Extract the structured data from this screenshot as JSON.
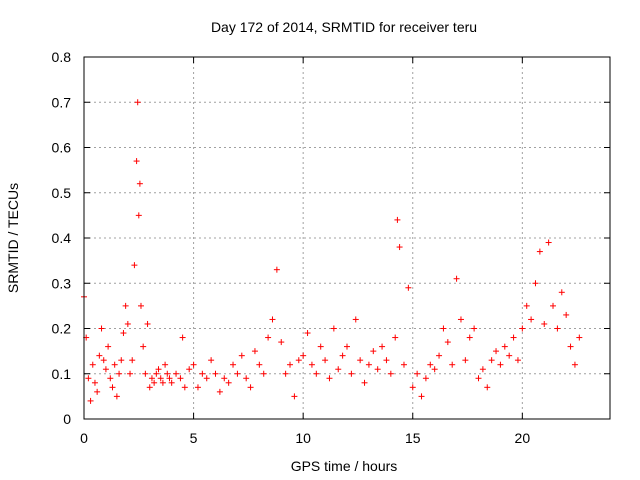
{
  "chart_data": {
    "type": "scatter",
    "title": "Day 172 of 2014, SRMTID for receiver teru",
    "xlabel": "GPS time / hours",
    "ylabel": "SRMTID / TECUs",
    "xlim": [
      0,
      24
    ],
    "ylim": [
      0,
      0.8
    ],
    "xticks": [
      0,
      5,
      10,
      15,
      20
    ],
    "xtick_labels": [
      "0",
      "5",
      "10",
      "15",
      "20"
    ],
    "yticks": [
      0,
      0.1,
      0.2,
      0.3,
      0.4,
      0.5,
      0.6,
      0.7,
      0.8
    ],
    "ytick_labels": [
      "0",
      "0.1",
      "0.2",
      "0.3",
      "0.4",
      "0.5",
      "0.6",
      "0.7",
      "0.8"
    ],
    "grid": true,
    "marker": "plus",
    "color": "#ff0000",
    "series": [
      {
        "name": "SRMTID",
        "x": [
          0.0,
          0.1,
          0.2,
          0.3,
          0.4,
          0.5,
          0.6,
          0.7,
          0.8,
          0.9,
          1.0,
          1.1,
          1.2,
          1.3,
          1.4,
          1.5,
          1.6,
          1.7,
          1.8,
          1.9,
          2.0,
          2.1,
          2.2,
          2.3,
          2.4,
          2.45,
          2.5,
          2.55,
          2.6,
          2.7,
          2.8,
          2.9,
          3.0,
          3.1,
          3.2,
          3.3,
          3.4,
          3.5,
          3.6,
          3.7,
          3.8,
          3.9,
          4.0,
          4.2,
          4.4,
          4.5,
          4.6,
          4.8,
          5.0,
          5.2,
          5.4,
          5.6,
          5.8,
          6.0,
          6.2,
          6.4,
          6.6,
          6.8,
          7.0,
          7.2,
          7.4,
          7.6,
          7.8,
          8.0,
          8.2,
          8.4,
          8.6,
          8.8,
          9.0,
          9.2,
          9.4,
          9.6,
          9.8,
          10.0,
          10.2,
          10.4,
          10.6,
          10.8,
          11.0,
          11.2,
          11.4,
          11.6,
          11.8,
          12.0,
          12.2,
          12.4,
          12.6,
          12.8,
          13.0,
          13.2,
          13.4,
          13.6,
          13.8,
          14.0,
          14.2,
          14.3,
          14.4,
          14.6,
          14.8,
          15.0,
          15.2,
          15.4,
          15.6,
          15.8,
          16.0,
          16.2,
          16.4,
          16.6,
          16.8,
          17.0,
          17.2,
          17.4,
          17.6,
          17.8,
          18.0,
          18.2,
          18.4,
          18.6,
          18.8,
          19.0,
          19.2,
          19.4,
          19.6,
          19.8,
          20.0,
          20.2,
          20.4,
          20.6,
          20.8,
          21.0,
          21.2,
          21.4,
          21.6,
          21.8,
          22.0,
          22.2,
          22.4,
          22.6
        ],
        "y": [
          0.27,
          0.18,
          0.09,
          0.04,
          0.12,
          0.08,
          0.06,
          0.14,
          0.2,
          0.13,
          0.11,
          0.16,
          0.09,
          0.07,
          0.12,
          0.05,
          0.1,
          0.13,
          0.19,
          0.25,
          0.21,
          0.1,
          0.13,
          0.34,
          0.57,
          0.7,
          0.45,
          0.52,
          0.25,
          0.16,
          0.1,
          0.21,
          0.07,
          0.09,
          0.08,
          0.1,
          0.11,
          0.09,
          0.08,
          0.12,
          0.1,
          0.09,
          0.08,
          0.1,
          0.09,
          0.18,
          0.07,
          0.11,
          0.12,
          0.07,
          0.1,
          0.09,
          0.13,
          0.1,
          0.06,
          0.09,
          0.08,
          0.12,
          0.1,
          0.14,
          0.09,
          0.07,
          0.15,
          0.12,
          0.1,
          0.18,
          0.22,
          0.33,
          0.17,
          0.1,
          0.12,
          0.05,
          0.13,
          0.14,
          0.19,
          0.12,
          0.1,
          0.16,
          0.13,
          0.09,
          0.2,
          0.11,
          0.14,
          0.16,
          0.1,
          0.22,
          0.13,
          0.08,
          0.12,
          0.15,
          0.11,
          0.16,
          0.13,
          0.1,
          0.18,
          0.44,
          0.38,
          0.12,
          0.29,
          0.07,
          0.1,
          0.05,
          0.09,
          0.12,
          0.11,
          0.14,
          0.2,
          0.17,
          0.12,
          0.31,
          0.22,
          0.13,
          0.18,
          0.2,
          0.09,
          0.11,
          0.07,
          0.13,
          0.15,
          0.12,
          0.16,
          0.14,
          0.18,
          0.13,
          0.2,
          0.25,
          0.22,
          0.3,
          0.37,
          0.21,
          0.39,
          0.25,
          0.2,
          0.28,
          0.23,
          0.16,
          0.12,
          0.18
        ]
      }
    ]
  }
}
